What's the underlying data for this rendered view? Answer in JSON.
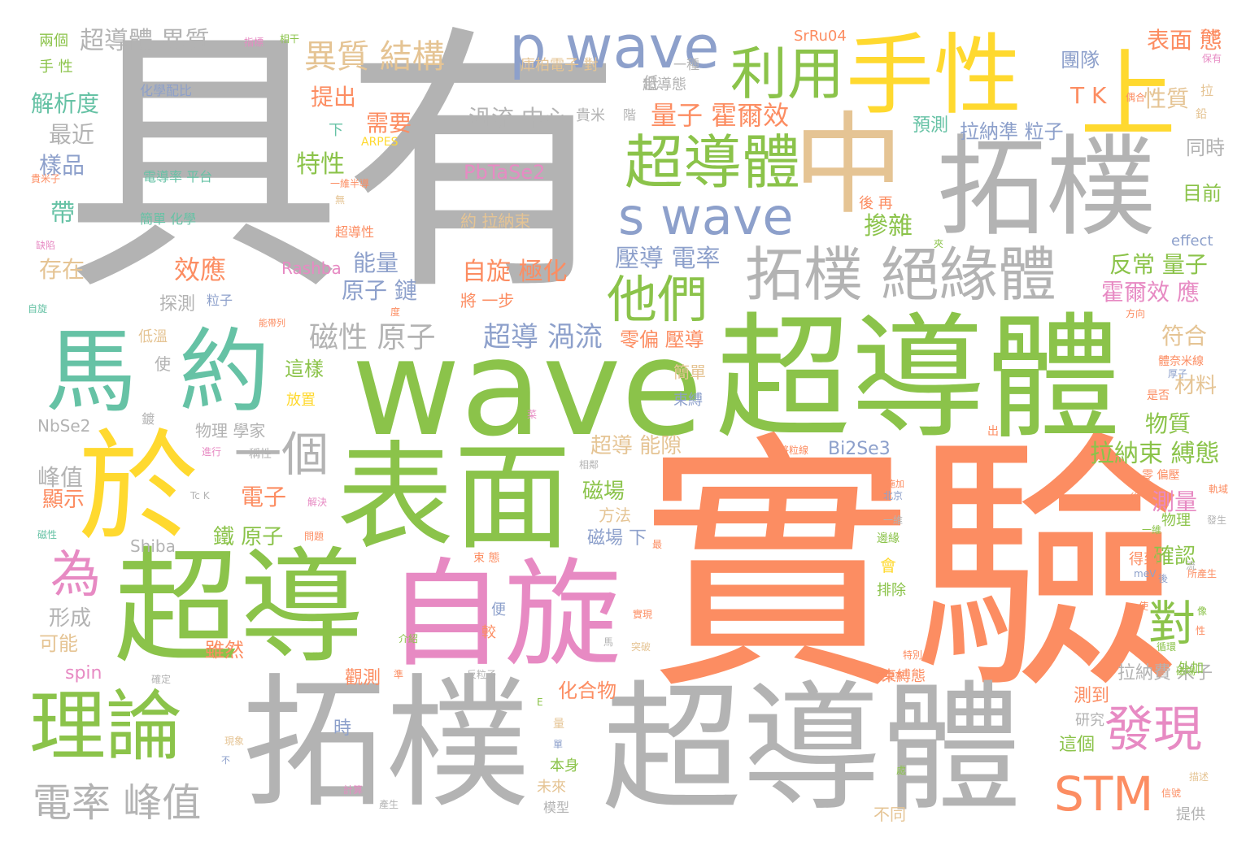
{
  "palette": {
    "gray": "#b3b3b3",
    "orange": "#fc8d62",
    "green": "#8bc34a",
    "teal": "#66c2a5",
    "yellow": "#ffd92f",
    "pink": "#e78ac3",
    "blue": "#8da0cb",
    "tan": "#e5c494"
  },
  "words": [
    {
      "text": "具有",
      "color": "gray"
    },
    {
      "text": "實驗",
      "color": "orange"
    },
    {
      "text": "wave",
      "color": "green"
    },
    {
      "text": "超導體",
      "color": "green"
    },
    {
      "text": "拓樸",
      "color": "gray"
    },
    {
      "text": "中",
      "color": "tan"
    },
    {
      "text": "超導",
      "color": "green"
    },
    {
      "text": "自旋",
      "color": "pink"
    },
    {
      "text": "拓樸",
      "color": "gray"
    },
    {
      "text": "超導體",
      "color": "gray"
    },
    {
      "text": "表面",
      "color": "green"
    },
    {
      "text": "於",
      "color": "yellow"
    },
    {
      "text": "馬",
      "color": "teal"
    },
    {
      "text": "約",
      "color": "teal"
    },
    {
      "text": "上",
      "color": "yellow"
    },
    {
      "text": "手性",
      "color": "yellow"
    },
    {
      "text": "p wave",
      "color": "blue"
    },
    {
      "text": "超導體",
      "color": "green"
    },
    {
      "text": "s wave",
      "color": "blue"
    },
    {
      "text": "拓樸 絕緣體",
      "color": "gray"
    },
    {
      "text": "理論",
      "color": "green"
    },
    {
      "text": "利用",
      "color": "green"
    },
    {
      "text": "他們",
      "color": "green"
    },
    {
      "text": "發現",
      "color": "pink"
    },
    {
      "text": "STM",
      "color": "orange"
    },
    {
      "text": "電率 峰值",
      "color": "gray"
    },
    {
      "text": "一個",
      "color": "gray"
    },
    {
      "text": "為",
      "color": "pink"
    },
    {
      "text": "對",
      "color": "green"
    },
    {
      "text": "異質 結構",
      "color": "tan"
    },
    {
      "text": "超導體 異質",
      "color": "gray"
    },
    {
      "text": "磁性 原子",
      "color": "gray"
    },
    {
      "text": "超導 渦流",
      "color": "blue"
    },
    {
      "text": "量子 霍爾效",
      "color": "orange"
    },
    {
      "text": "渦流 中心",
      "color": "gray"
    },
    {
      "text": "壓導 電率",
      "color": "blue"
    },
    {
      "text": "自旋 極化",
      "color": "orange"
    },
    {
      "text": "效應",
      "color": "orange"
    },
    {
      "text": "能量",
      "color": "blue"
    },
    {
      "text": "原子 鏈",
      "color": "blue"
    },
    {
      "text": "特性",
      "color": "green"
    },
    {
      "text": "摻雜",
      "color": "green"
    },
    {
      "text": "反常 量子",
      "color": "green"
    },
    {
      "text": "霍爾效 應",
      "color": "pink"
    },
    {
      "text": "團隊",
      "color": "blue"
    },
    {
      "text": "T K",
      "color": "orange"
    },
    {
      "text": "表面 態",
      "color": "orange"
    },
    {
      "text": "性質",
      "color": "tan"
    },
    {
      "text": "拉納準 粒子",
      "color": "blue"
    },
    {
      "text": "預測",
      "color": "teal"
    },
    {
      "text": "需要",
      "color": "orange"
    },
    {
      "text": "提出",
      "color": "orange"
    },
    {
      "text": "解析度",
      "color": "teal"
    },
    {
      "text": "最近",
      "color": "gray"
    },
    {
      "text": "樣品",
      "color": "blue"
    },
    {
      "text": "帶",
      "color": "teal"
    },
    {
      "text": "存在",
      "color": "tan"
    },
    {
      "text": "PbTaSe2",
      "color": "pink"
    },
    {
      "text": "SrRu04",
      "color": "orange"
    },
    {
      "text": "Rashba",
      "color": "pink"
    },
    {
      "text": "NbSe2",
      "color": "gray"
    },
    {
      "text": "Bi2Se3",
      "color": "blue"
    },
    {
      "text": "Shiba",
      "color": "gray"
    },
    {
      "text": "spin",
      "color": "pink"
    },
    {
      "text": "effect",
      "color": "blue"
    },
    {
      "text": "ARPES",
      "color": "yellow"
    },
    {
      "text": "拉納束 縛態",
      "color": "green"
    },
    {
      "text": "物質",
      "color": "green"
    },
    {
      "text": "測量",
      "color": "pink"
    },
    {
      "text": "確認",
      "color": "green"
    },
    {
      "text": "符合",
      "color": "tan"
    },
    {
      "text": "材料",
      "color": "tan"
    },
    {
      "text": "同時",
      "color": "gray"
    },
    {
      "text": "目前",
      "color": "green"
    },
    {
      "text": "拉納費 米子",
      "color": "gray"
    },
    {
      "text": "測到",
      "color": "orange"
    },
    {
      "text": "這個",
      "color": "green"
    },
    {
      "text": "化合物",
      "color": "orange"
    },
    {
      "text": "超導 能隙",
      "color": "tan"
    },
    {
      "text": "磁場",
      "color": "green"
    },
    {
      "text": "磁場 下",
      "color": "blue"
    },
    {
      "text": "方法",
      "color": "tan"
    },
    {
      "text": "零偏 壓導",
      "color": "orange"
    },
    {
      "text": "超導態",
      "color": "gray"
    },
    {
      "text": "束縛",
      "color": "blue"
    },
    {
      "text": "簡單",
      "color": "tan"
    },
    {
      "text": "鐵 原子",
      "color": "green"
    },
    {
      "text": "電子",
      "color": "orange"
    },
    {
      "text": "峰值",
      "color": "gray"
    },
    {
      "text": "顯示",
      "color": "orange"
    },
    {
      "text": "形成",
      "color": "gray"
    },
    {
      "text": "可能",
      "color": "tan"
    },
    {
      "text": "雖然",
      "color": "orange"
    },
    {
      "text": "觀測",
      "color": "orange"
    },
    {
      "text": "時",
      "color": "blue"
    },
    {
      "text": "這樣",
      "color": "green"
    },
    {
      "text": "物理 學家",
      "color": "gray"
    },
    {
      "text": "探測",
      "color": "gray"
    },
    {
      "text": "化學配比",
      "color": "blue"
    },
    {
      "text": "電導率 平台",
      "color": "teal"
    },
    {
      "text": "簡單 化學",
      "color": "teal"
    },
    {
      "text": "庫柏電子 對",
      "color": "tan"
    },
    {
      "text": "約 拉納束",
      "color": "tan"
    },
    {
      "text": "將 一步",
      "color": "orange"
    },
    {
      "text": "兩個",
      "color": "green"
    },
    {
      "text": "手 性",
      "color": "green"
    },
    {
      "text": "本身",
      "color": "green"
    },
    {
      "text": "未來",
      "color": "tan"
    },
    {
      "text": "模型",
      "color": "gray"
    },
    {
      "text": "研究",
      "color": "gray"
    },
    {
      "text": "不同",
      "color": "tan"
    },
    {
      "text": "提供",
      "color": "gray"
    },
    {
      "text": "得到",
      "color": "orange"
    },
    {
      "text": "物理",
      "color": "green"
    },
    {
      "text": "外加",
      "color": "green"
    },
    {
      "text": "會",
      "color": "yellow"
    },
    {
      "text": "排除",
      "color": "green"
    },
    {
      "text": "束縛態",
      "color": "orange"
    },
    {
      "text": "後 再",
      "color": "orange"
    },
    {
      "text": "使",
      "color": "gray"
    },
    {
      "text": "低溫",
      "color": "tan"
    },
    {
      "text": "鍍",
      "color": "gray"
    },
    {
      "text": "放置",
      "color": "yellow"
    },
    {
      "text": "便",
      "color": "blue"
    },
    {
      "text": "較",
      "color": "orange"
    },
    {
      "text": "下",
      "color": "teal"
    },
    {
      "text": "低",
      "color": "gray"
    },
    {
      "text": "一種",
      "color": "gray"
    },
    {
      "text": "貴米",
      "color": "gray"
    },
    {
      "text": "階",
      "color": "gray"
    },
    {
      "text": "粒子",
      "color": "blue"
    },
    {
      "text": "拉",
      "color": "tan"
    },
    {
      "text": "鉛",
      "color": "tan"
    },
    {
      "text": "相干",
      "color": "green"
    },
    {
      "text": "指標",
      "color": "pink"
    },
    {
      "text": "互相",
      "color": "orange"
    },
    {
      "text": "保有",
      "color": "pink"
    },
    {
      "text": "偶合",
      "color": "orange"
    },
    {
      "text": "超導性",
      "color": "orange"
    },
    {
      "text": "一維半導",
      "color": "orange"
    },
    {
      "text": "無",
      "color": "tan"
    },
    {
      "text": "貴米子",
      "color": "orange"
    },
    {
      "text": "缺陷",
      "color": "pink"
    },
    {
      "text": "自旋",
      "color": "teal"
    },
    {
      "text": "能帶列",
      "color": "orange"
    },
    {
      "text": "度",
      "color": "orange"
    },
    {
      "text": "夾",
      "color": "green"
    },
    {
      "text": "方向",
      "color": "orange"
    },
    {
      "text": "體奈米線",
      "color": "orange"
    },
    {
      "text": "厚子",
      "color": "blue"
    },
    {
      "text": "是否",
      "color": "orange"
    },
    {
      "text": "出",
      "color": "orange"
    },
    {
      "text": "零 偏壓",
      "color": "orange"
    },
    {
      "text": "軌域",
      "color": "orange"
    },
    {
      "text": "發生",
      "color": "gray"
    },
    {
      "text": "所產生",
      "color": "orange"
    },
    {
      "text": "meV",
      "color": "blue"
    },
    {
      "text": "磁性",
      "color": "teal"
    },
    {
      "text": "稱性",
      "color": "gray"
    },
    {
      "text": "進行",
      "color": "pink"
    },
    {
      "text": "解決",
      "color": "pink"
    },
    {
      "text": "將粒線",
      "color": "orange"
    },
    {
      "text": "相鄰",
      "color": "gray"
    },
    {
      "text": "邊緣",
      "color": "green"
    },
    {
      "text": "一維",
      "color": "gray"
    },
    {
      "text": "北京",
      "color": "blue"
    },
    {
      "text": "施加",
      "color": "orange"
    },
    {
      "text": "後",
      "color": "orange"
    },
    {
      "text": "束 態",
      "color": "orange"
    },
    {
      "text": "最",
      "color": "orange"
    },
    {
      "text": "問題",
      "color": "orange"
    },
    {
      "text": "Tc K",
      "color": "gray"
    },
    {
      "text": "馬",
      "color": "gray"
    },
    {
      "text": "介紹",
      "color": "green"
    },
    {
      "text": "反粒子",
      "color": "gray"
    },
    {
      "text": "準",
      "color": "orange"
    },
    {
      "text": "確定",
      "color": "gray"
    },
    {
      "text": "特別",
      "color": "orange"
    },
    {
      "text": "電導率",
      "color": "orange"
    },
    {
      "text": "量",
      "color": "tan"
    },
    {
      "text": "單",
      "color": "blue"
    },
    {
      "text": "E",
      "color": "green"
    },
    {
      "text": "計算",
      "color": "pink"
    },
    {
      "text": "產生",
      "color": "gray"
    },
    {
      "text": "描述",
      "color": "tan"
    },
    {
      "text": "信號",
      "color": "orange"
    },
    {
      "text": "現象",
      "color": "tan"
    },
    {
      "text": "不",
      "color": "blue"
    },
    {
      "text": "處",
      "color": "green"
    },
    {
      "text": "實現",
      "color": "orange"
    },
    {
      "text": "突破",
      "color": "tan"
    },
    {
      "text": "循環",
      "color": "green"
    },
    {
      "text": "性",
      "color": "orange"
    },
    {
      "text": "磁場",
      "color": "green"
    },
    {
      "text": "像",
      "color": "green"
    },
    {
      "text": "菜",
      "color": "pink"
    },
    {
      "text": "後",
      "color": "blue"
    },
    {
      "text": "使",
      "color": "orange"
    },
    {
      "text": "流",
      "color": "gray"
    },
    {
      "text": "一維",
      "color": "green"
    }
  ]
}
